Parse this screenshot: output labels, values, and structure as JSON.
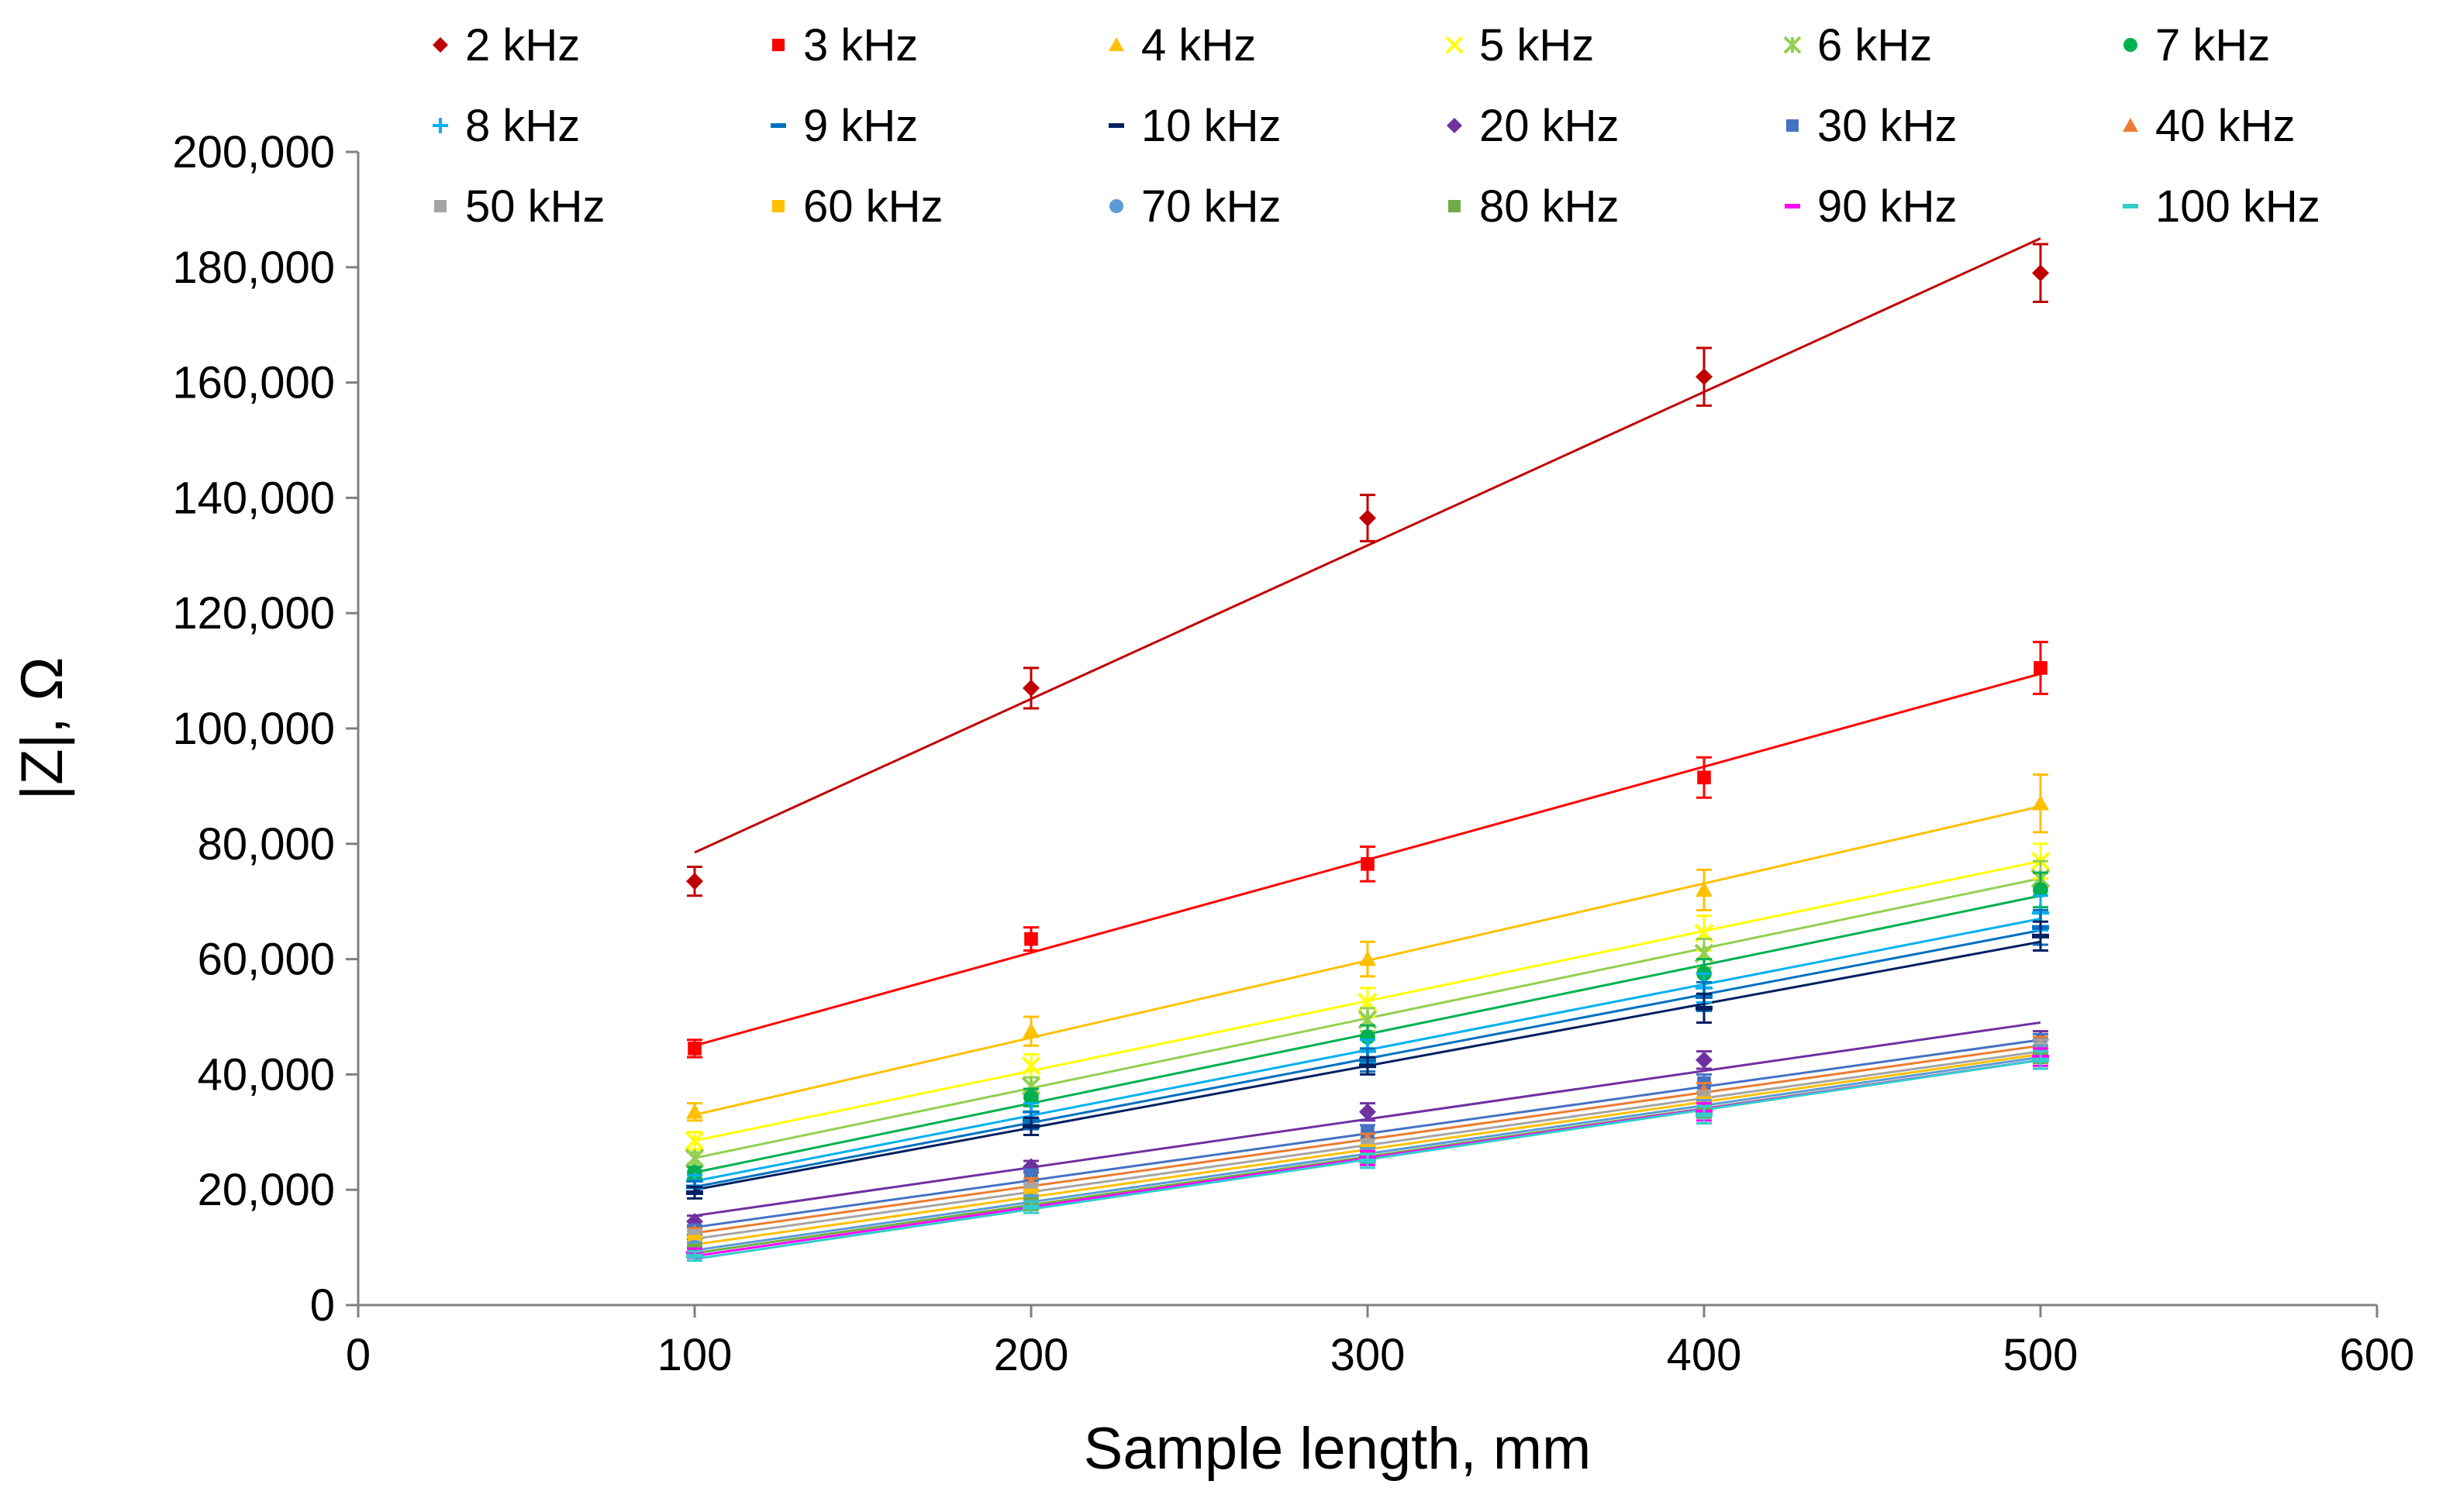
{
  "chart_data": {
    "type": "scatter",
    "title": "",
    "xlabel": "Sample length, mm",
    "ylabel": "|Z|, Ω",
    "xlim": [
      0,
      600
    ],
    "ylim": [
      0,
      200000
    ],
    "x_ticks": [
      0,
      100,
      200,
      300,
      400,
      500,
      600
    ],
    "y_ticks": [
      0,
      20000,
      40000,
      60000,
      80000,
      100000,
      120000,
      140000,
      160000,
      180000,
      200000
    ],
    "x_tick_labels": [
      "0",
      "100",
      "200",
      "300",
      "400",
      "500",
      "600"
    ],
    "y_tick_labels": [
      "0",
      "20,000",
      "40,000",
      "60,000",
      "80,000",
      "100,000",
      "120,000",
      "140,000",
      "160,000",
      "180,000",
      "200,000"
    ],
    "grid": false,
    "legend_position": "top",
    "x": [
      100,
      200,
      300,
      400,
      500
    ],
    "trendlines": "linear",
    "series": [
      {
        "name": "2 kHz",
        "color": "#C00000",
        "marker": "diamond",
        "values": [
          73500,
          107000,
          136500,
          161000,
          179000
        ],
        "error": [
          2500,
          3500,
          4000,
          5000,
          5000
        ],
        "fit": [
          78500,
          185000
        ]
      },
      {
        "name": "3 kHz",
        "color": "#FF0000",
        "marker": "square",
        "values": [
          44500,
          63500,
          76500,
          91500,
          110500
        ],
        "error": [
          1500,
          2000,
          3000,
          3500,
          4500
        ],
        "fit": [
          45000,
          109500
        ]
      },
      {
        "name": "4 kHz",
        "color": "#FFC000",
        "marker": "triangle",
        "values": [
          33500,
          47500,
          60000,
          72000,
          87000
        ],
        "error": [
          1500,
          2500,
          3000,
          3500,
          5000
        ],
        "fit": [
          33000,
          86500
        ]
      },
      {
        "name": "5 kHz",
        "color": "#FFFF00",
        "marker": "x",
        "values": [
          28500,
          41500,
          52500,
          64500,
          77000
        ],
        "error": [
          1500,
          2000,
          2500,
          3000,
          3000
        ],
        "fit": [
          28500,
          77000
        ]
      },
      {
        "name": "6 kHz",
        "color": "#92D050",
        "marker": "star",
        "values": [
          25500,
          38000,
          49500,
          61000,
          74000
        ],
        "error": [
          1000,
          1500,
          2000,
          2500,
          3000
        ],
        "fit": [
          25500,
          74000
        ]
      },
      {
        "name": "7 kHz",
        "color": "#00B050",
        "marker": "circle",
        "values": [
          23000,
          36000,
          46500,
          57500,
          72000
        ],
        "error": [
          1000,
          1500,
          2000,
          2500,
          3000
        ],
        "fit": [
          23000,
          71000
        ]
      },
      {
        "name": "8 kHz",
        "color": "#00B0F0",
        "marker": "plus",
        "values": [
          21500,
          33500,
          44000,
          55000,
          68000
        ],
        "error": [
          1000,
          1500,
          2000,
          2500,
          3000
        ],
        "fit": [
          21500,
          67000
        ]
      },
      {
        "name": "9 kHz",
        "color": "#0070C0",
        "marker": "dash",
        "values": [
          20500,
          32000,
          42500,
          53500,
          65500
        ],
        "error": [
          1000,
          1500,
          2000,
          2500,
          3000
        ],
        "fit": [
          20500,
          65000
        ]
      },
      {
        "name": "10 kHz",
        "color": "#002060",
        "marker": "dash",
        "values": [
          19500,
          31000,
          41500,
          51500,
          64000
        ],
        "error": [
          1000,
          1500,
          1500,
          2500,
          2500
        ],
        "fit": [
          20000,
          63000
        ]
      },
      {
        "name": "20 kHz",
        "color": "#7030A0",
        "marker": "diamond",
        "values": [
          14500,
          24000,
          33500,
          42500,
          46000
        ],
        "error": [
          1000,
          1000,
          1500,
          1500,
          1500
        ],
        "fit": [
          15500,
          49000
        ]
      },
      {
        "name": "30 kHz",
        "color": "#4472C4",
        "marker": "square",
        "values": [
          13000,
          22500,
          30000,
          38500,
          45500
        ],
        "error": [
          800,
          1000,
          1200,
          1500,
          1500
        ],
        "fit": [
          13500,
          46000
        ]
      },
      {
        "name": "40 kHz",
        "color": "#ED7D31",
        "marker": "triangle",
        "values": [
          12500,
          21000,
          28500,
          37000,
          45000
        ],
        "error": [
          800,
          1000,
          1200,
          1500,
          1500
        ],
        "fit": [
          12500,
          45000
        ]
      },
      {
        "name": "50 kHz",
        "color": "#A5A5A5",
        "marker": "square",
        "values": [
          12000,
          20000,
          27500,
          35500,
          44500
        ],
        "error": [
          800,
          1000,
          1200,
          1500,
          1500
        ],
        "fit": [
          11500,
          44000
        ]
      },
      {
        "name": "60 kHz",
        "color": "#FFC000",
        "marker": "square",
        "values": [
          11000,
          19000,
          26500,
          34500,
          43500
        ],
        "error": [
          800,
          1000,
          1200,
          1500,
          1500
        ],
        "fit": [
          10500,
          43500
        ]
      },
      {
        "name": "70 kHz",
        "color": "#5B9BD5",
        "marker": "circle",
        "values": [
          10000,
          18000,
          26000,
          34000,
          43500
        ],
        "error": [
          800,
          1000,
          1200,
          1500,
          1500
        ],
        "fit": [
          9500,
          43000
        ]
      },
      {
        "name": "80 kHz",
        "color": "#70AD47",
        "marker": "square",
        "values": [
          9500,
          17500,
          25500,
          33500,
          43000
        ],
        "error": [
          800,
          1000,
          1200,
          1500,
          1500
        ],
        "fit": [
          9000,
          42500
        ]
      },
      {
        "name": "90 kHz",
        "color": "#FF00FF",
        "marker": "dash",
        "values": [
          9000,
          17000,
          25500,
          33500,
          43000
        ],
        "error": [
          800,
          1000,
          1200,
          1500,
          1500
        ],
        "fit": [
          8500,
          42500
        ]
      },
      {
        "name": "100 kHz",
        "color": "#33CCCC",
        "marker": "dash",
        "values": [
          8500,
          17000,
          25000,
          33000,
          42500
        ],
        "error": [
          800,
          1000,
          1200,
          1500,
          1500
        ],
        "fit": [
          8000,
          42500
        ]
      }
    ]
  }
}
